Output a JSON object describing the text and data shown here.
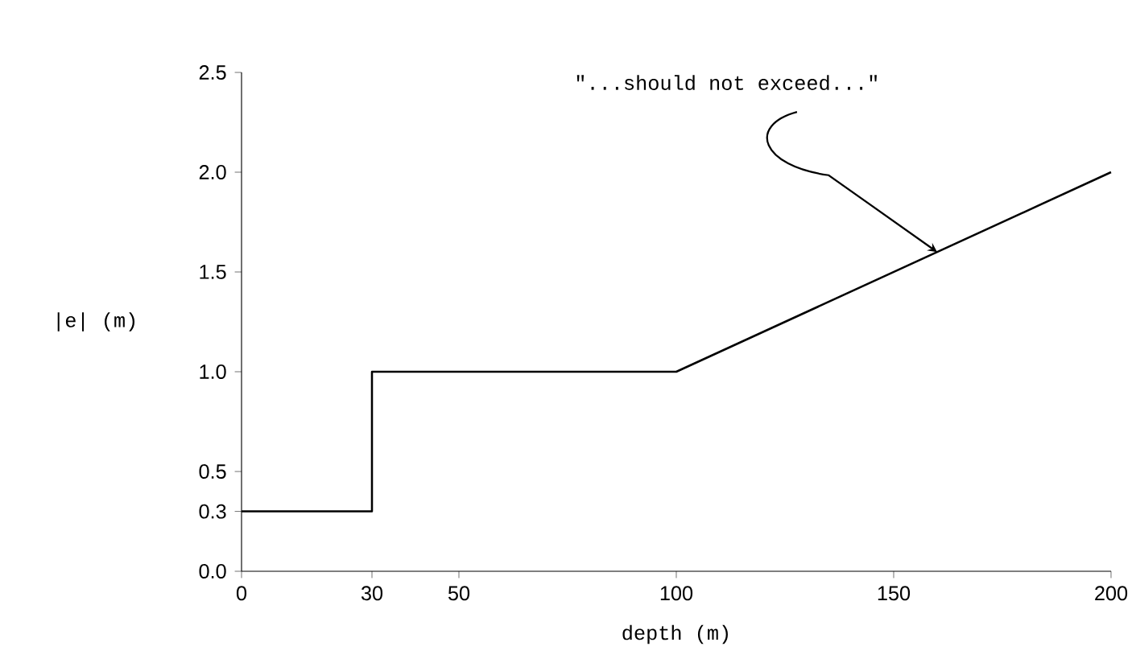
{
  "chart_data": {
    "type": "line",
    "xlabel": "depth (m)",
    "ylabel": "|e|  (m)",
    "x": [
      0,
      30,
      30,
      100,
      200
    ],
    "values": [
      0.3,
      0.3,
      1.0,
      1.0,
      2.0
    ],
    "color": "#000000",
    "xlim": [
      0,
      200
    ],
    "ylim": [
      0,
      2.5
    ],
    "xticks": [
      0,
      30,
      50,
      100,
      150,
      200
    ],
    "yticks": [
      {
        "value": 0,
        "label": "0.0"
      },
      {
        "value": 0.3,
        "label": "0.3"
      },
      {
        "value": 0.5,
        "label": "0.5"
      },
      {
        "value": 1,
        "label": "1.0"
      },
      {
        "value": 1.5,
        "label": "1.5"
      },
      {
        "value": 2,
        "label": "2.0"
      },
      {
        "value": 2.5,
        "label": "2.5"
      }
    ],
    "annotations": [
      {
        "text": "\"...should not exceed...\"",
        "x": 160,
        "y": 1.6
      }
    ],
    "grid": false,
    "marker": "none",
    "line_style": "solid"
  }
}
